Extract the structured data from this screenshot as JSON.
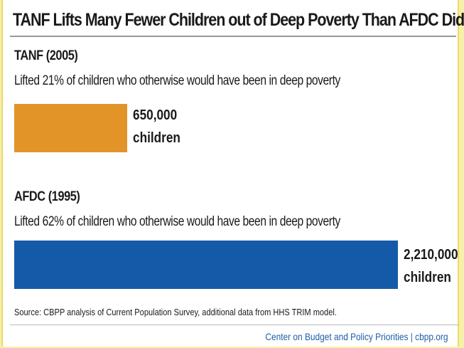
{
  "title": "TANF Lifts Many Fewer Children out of Deep Poverty Than AFDC Did",
  "chart_data": {
    "type": "bar",
    "orientation": "horizontal",
    "categories": [
      "TANF (2005)",
      "AFDC (1995)"
    ],
    "values": [
      650000,
      2210000
    ],
    "descriptions": [
      "Lifted 21% of  children who otherwise would have been in deep poverty",
      "Lifted 62% of  children who otherwise would have been in deep poverty"
    ],
    "value_labels": [
      "650,000",
      "2,210,000"
    ],
    "unit_label": "children",
    "colors": [
      "#e39428",
      "#155aa8"
    ],
    "xlim": [
      0,
      2210000
    ]
  },
  "source": "Source:  CBPP analysis of Current Population Survey, additional data from HHS TRIM model.",
  "credit": "Center on Budget and Policy Priorities | cbpp.org"
}
